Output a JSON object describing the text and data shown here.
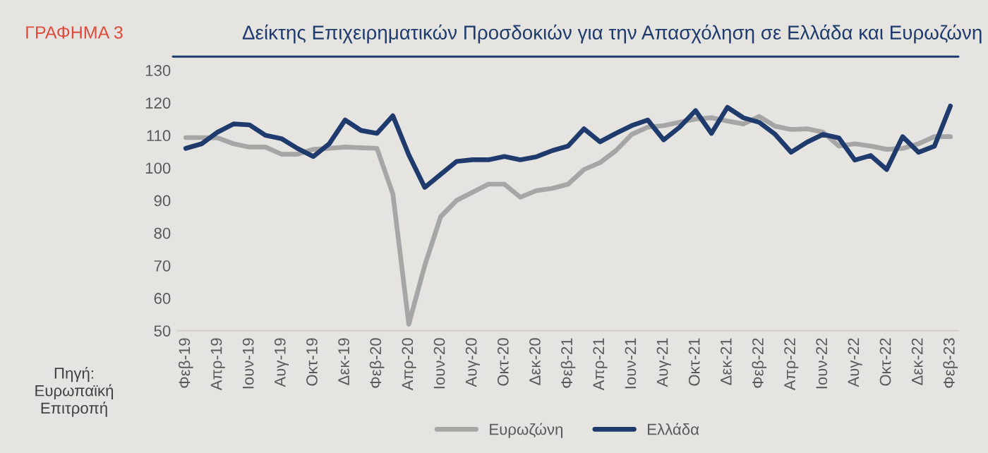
{
  "chart_data": {
    "type": "line",
    "title": "Δείκτης Επιχειρηματικών Προσδοκιών για την Απασχόληση σε Ελλάδα και Ευρωζώνη",
    "annotations": [
      "ΓΡΑΦΗΜΑ 3",
      "Πηγή:\nΕυρωπαϊκή\nΕπιτροπή"
    ],
    "categories": [
      "Φεβ-19",
      null,
      "Απρ-19",
      null,
      "Ιουν-19",
      null,
      "Αυγ-19",
      null,
      "Οκτ-19",
      null,
      "Δεκ-19",
      null,
      "Φεβ-20",
      null,
      "Απρ-20",
      null,
      "Ιουν-20",
      null,
      "Αυγ-20",
      null,
      "Οκτ-20",
      null,
      "Δεκ-20",
      null,
      "Φεβ-21",
      null,
      "Απρ-21",
      null,
      "Ιουν-21",
      null,
      "Αυγ-21",
      null,
      "Οκτ-21",
      null,
      "Δεκ-21",
      null,
      "Φεβ-22",
      null,
      "Απρ-22",
      null,
      "Ιουν-22",
      null,
      "Αυγ-22",
      null,
      "Οκτ-22",
      null,
      "Δεκ-22",
      null,
      "Φεβ-23"
    ],
    "series": [
      {
        "name": "Ευρωζώνη",
        "color": "#a6a6a6",
        "values": [
          109.3,
          109.3,
          109.2,
          107.4,
          106.4,
          106.4,
          104.2,
          104.2,
          105.7,
          106,
          106.4,
          106.2,
          106,
          92,
          52,
          70,
          85,
          90,
          92.5,
          95,
          95,
          91,
          93,
          93.7,
          95,
          99.5,
          101.6,
          105.3,
          110.3,
          112.5,
          113,
          114,
          115,
          115.4,
          114.4,
          113.5,
          115.8,
          112.8,
          111.8,
          112,
          111,
          106.7,
          107.4,
          106.7,
          105.7,
          106,
          107.4,
          109.6,
          109.6
        ]
      },
      {
        "name": "Ελλάδα",
        "color": "#1f3b6e",
        "values": [
          106,
          107.4,
          111,
          113.5,
          113.2,
          110,
          109,
          106,
          103.5,
          107.4,
          114.7,
          111.5,
          110.6,
          116,
          104,
          94,
          98,
          102,
          102.5,
          102.5,
          103.5,
          102.5,
          103.4,
          105.3,
          106.7,
          112,
          108,
          110.6,
          113,
          114.7,
          108.6,
          112.5,
          117.6,
          110.6,
          118.6,
          115.4,
          114,
          110.3,
          104.8,
          107.9,
          110.3,
          109.2,
          102.4,
          103.8,
          99.5,
          109.6,
          104.8,
          106.7,
          119
        ]
      }
    ],
    "ylim": [
      50,
      130
    ],
    "yticks": [
      50,
      60,
      70,
      80,
      90,
      100,
      110,
      120,
      130
    ],
    "grid": false,
    "legend": "bottom",
    "marker": "none",
    "line_style": "solid"
  }
}
